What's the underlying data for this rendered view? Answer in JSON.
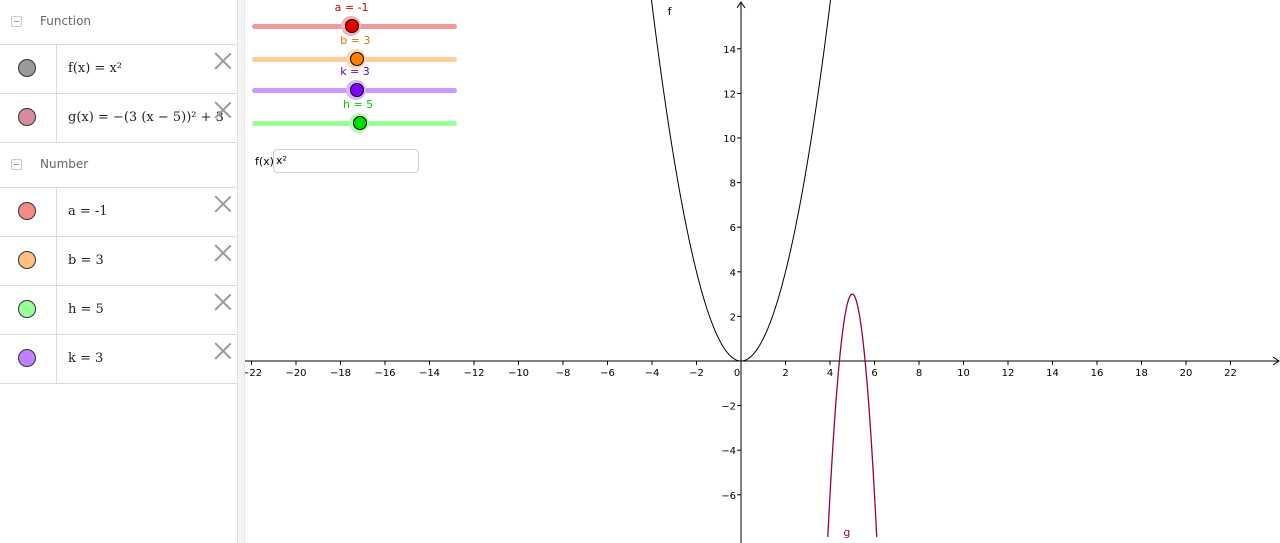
{
  "algebra": {
    "groups": [
      {
        "label": "Function",
        "items": [
          {
            "text_html": "f(x) = x²",
            "color": "#999999"
          },
          {
            "text_html": "g(x) = −(3 (x − 5))² + 3",
            "color": "#d88aa0"
          }
        ]
      },
      {
        "label": "Number",
        "items": [
          {
            "text_html": "a = -1",
            "color": "#f28a8a"
          },
          {
            "text_html": "b = 3",
            "color": "#ffbf80"
          },
          {
            "text_html": "h = 5",
            "color": "#99ff99"
          },
          {
            "text_html": "k = 3",
            "color": "#c080ff"
          }
        ]
      }
    ]
  },
  "sliders": [
    {
      "label": "a = -1",
      "value": -1,
      "label_color": "#cc0000",
      "track_color": "#f29a9a",
      "knob_color": "#e00000",
      "halo_color": "#f2b3b3"
    },
    {
      "label": "b = 3",
      "value": 3,
      "label_color": "#e07000",
      "track_color": "#ffcc99",
      "knob_color": "#ff8000",
      "halo_color": "#ffd9b3"
    },
    {
      "label": "k = 3",
      "value": 3,
      "label_color": "#6a00cc",
      "track_color": "#cc99ff",
      "knob_color": "#8000ff",
      "halo_color": "#d9b3ff"
    },
    {
      "label": "h = 5",
      "value": 5,
      "label_color": "#00cc00",
      "track_color": "#99ff99",
      "knob_color": "#00e000",
      "halo_color": "#b3ffb3"
    }
  ],
  "input": {
    "label": "f(x)",
    "value": "x²"
  },
  "graph": {
    "x_ticks": [
      -22,
      -20,
      -18,
      -16,
      -14,
      -12,
      -10,
      -8,
      -6,
      -4,
      -2,
      0,
      2,
      4,
      6,
      8,
      10,
      12,
      14,
      16,
      18,
      20,
      22
    ],
    "y_ticks": [
      -6,
      -4,
      -2,
      2,
      4,
      6,
      8,
      10,
      12,
      14
    ],
    "curve_labels": {
      "f": "f",
      "g": "g"
    },
    "f_color": "#000000",
    "g_color": "#99004c"
  }
}
